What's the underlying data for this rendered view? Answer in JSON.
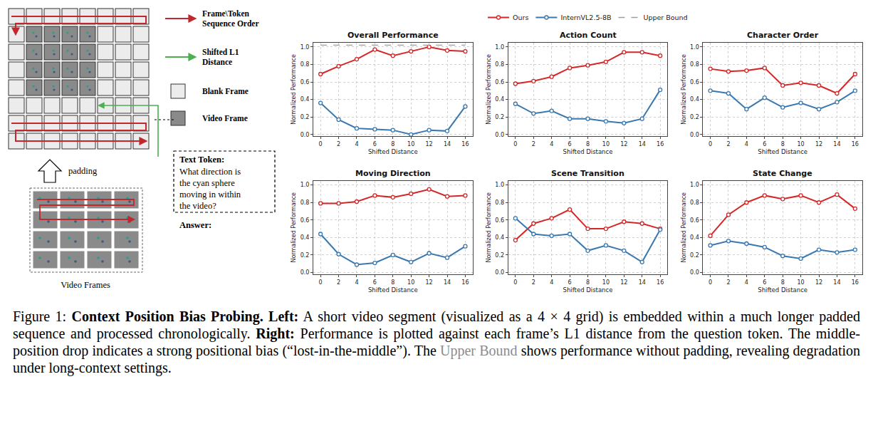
{
  "diagram": {
    "legend_items": [
      {
        "lines": [
          "Frame\\Token",
          "Sequence Order"
        ],
        "color": "#c0282d"
      },
      {
        "lines": [
          "Shifted L1",
          "Distance"
        ],
        "color": "#4caf50"
      },
      {
        "lines": [
          "Blank Frame"
        ],
        "color": "#ececec"
      },
      {
        "lines": [
          "Video Frame"
        ],
        "color": "#8a8a8a"
      }
    ],
    "text_box": {
      "title": "Text Token:",
      "question_lines": [
        "What direction is",
        "the cyan sphere",
        "moving in within",
        "the video?"
      ]
    },
    "answer": "Answer:",
    "padding": "padding",
    "video_frames": "Video Frames"
  },
  "chart_data": [
    {
      "type": "line",
      "title": "Overall Performance",
      "legend": "top",
      "grid": true,
      "x_label": "Shifted Distance",
      "y_label": "Normalized Performance",
      "x": [
        0,
        2,
        4,
        6,
        8,
        10,
        12,
        14,
        16
      ],
      "xlim": [
        -0.8,
        16.8
      ],
      "xticks": [
        0,
        2,
        4,
        6,
        8,
        10,
        12,
        14,
        16
      ],
      "ylim": [
        -0.02,
        1.05
      ],
      "yticks": [
        {
          "value": 0,
          "label": "0.0"
        },
        {
          "value": 0.2,
          "label": "0.2"
        },
        {
          "value": 0.4,
          "label": "0.4"
        },
        {
          "value": 0.6,
          "label": "0.6"
        },
        {
          "value": 0.8,
          "label": "0.8"
        },
        {
          "value": 1,
          "label": "1.0"
        }
      ],
      "series": [
        {
          "name": "Ours",
          "color": "#d62728",
          "marker": "circle",
          "line_style": "solid",
          "values": [
            0.69,
            0.78,
            0.86,
            0.97,
            0.9,
            0.95,
            1.0,
            0.96,
            0.95
          ]
        },
        {
          "name": "InternVL2.5-8B",
          "color": "#3a78b0",
          "marker": "circle",
          "line_style": "solid",
          "values": [
            0.36,
            0.17,
            0.07,
            0.06,
            0.05,
            0.0,
            0.05,
            0.04,
            0.32
          ]
        },
        {
          "name": "Upper Bound",
          "color": "#9e9e9e",
          "marker": "none",
          "line_style": "dashed",
          "values": [
            1.02,
            1.02,
            1.02,
            1.02,
            1.02,
            1.02,
            1.02,
            1.02,
            1.02
          ]
        }
      ]
    },
    {
      "type": "line",
      "title": "Action Count",
      "grid": true,
      "x_label": "Shifted Distance",
      "y_label": "Normalized Performance",
      "x": [
        0,
        2,
        4,
        6,
        8,
        10,
        12,
        14,
        16
      ],
      "xlim": [
        -0.8,
        16.8
      ],
      "xticks": [
        0,
        2,
        4,
        6,
        8,
        10,
        12,
        14,
        16
      ],
      "ylim": [
        -0.02,
        1.05
      ],
      "yticks": [
        {
          "value": 0,
          "label": "0.0"
        },
        {
          "value": 0.2,
          "label": "0.2"
        },
        {
          "value": 0.4,
          "label": "0.4"
        },
        {
          "value": 0.6,
          "label": "0.6"
        },
        {
          "value": 0.8,
          "label": "0.8"
        },
        {
          "value": 1,
          "label": "1.0"
        }
      ],
      "series": [
        {
          "name": "Ours",
          "color": "#d62728",
          "marker": "circle",
          "line_style": "solid",
          "values": [
            0.58,
            0.61,
            0.66,
            0.76,
            0.79,
            0.83,
            0.94,
            0.94,
            0.9
          ]
        },
        {
          "name": "InternVL2.5-8B",
          "color": "#3a78b0",
          "marker": "circle",
          "line_style": "solid",
          "values": [
            0.35,
            0.24,
            0.27,
            0.18,
            0.18,
            0.15,
            0.13,
            0.18,
            0.51
          ]
        }
      ]
    },
    {
      "type": "line",
      "title": "Character Order",
      "grid": true,
      "x_label": "Shifted Distance",
      "y_label": "Normalized Performance",
      "x": [
        0,
        2,
        4,
        6,
        8,
        10,
        12,
        14,
        16
      ],
      "xlim": [
        -0.8,
        16.8
      ],
      "xticks": [
        0,
        2,
        4,
        6,
        8,
        10,
        12,
        14,
        16
      ],
      "ylim": [
        -0.02,
        1.05
      ],
      "yticks": [
        {
          "value": 0,
          "label": "0.0"
        },
        {
          "value": 0.2,
          "label": "0.2"
        },
        {
          "value": 0.4,
          "label": "0.4"
        },
        {
          "value": 0.6,
          "label": "0.6"
        },
        {
          "value": 0.8,
          "label": "0.8"
        },
        {
          "value": 1,
          "label": "1.0"
        }
      ],
      "series": [
        {
          "name": "Ours",
          "color": "#d62728",
          "marker": "circle",
          "line_style": "solid",
          "values": [
            0.75,
            0.72,
            0.73,
            0.76,
            0.56,
            0.59,
            0.56,
            0.47,
            0.69
          ]
        },
        {
          "name": "InternVL2.5-8B",
          "color": "#3a78b0",
          "marker": "circle",
          "line_style": "solid",
          "values": [
            0.5,
            0.47,
            0.29,
            0.42,
            0.31,
            0.36,
            0.29,
            0.37,
            0.5
          ]
        }
      ]
    },
    {
      "type": "line",
      "title": "Moving Direction",
      "grid": true,
      "x_label": "Shifted Distance",
      "y_label": "Normalized Performance",
      "x": [
        0,
        2,
        4,
        6,
        8,
        10,
        12,
        14,
        16
      ],
      "xlim": [
        -0.8,
        16.8
      ],
      "xticks": [
        0,
        2,
        4,
        6,
        8,
        10,
        12,
        14,
        16
      ],
      "ylim": [
        -0.02,
        1.05
      ],
      "yticks": [
        {
          "value": 0,
          "label": "0.0"
        },
        {
          "value": 0.2,
          "label": "0.2"
        },
        {
          "value": 0.4,
          "label": "0.4"
        },
        {
          "value": 0.6,
          "label": "0.6"
        },
        {
          "value": 0.8,
          "label": "0.8"
        },
        {
          "value": 1,
          "label": "1.0"
        }
      ],
      "series": [
        {
          "name": "Ours",
          "color": "#d62728",
          "marker": "circle",
          "line_style": "solid",
          "values": [
            0.79,
            0.79,
            0.81,
            0.88,
            0.86,
            0.9,
            0.95,
            0.87,
            0.88
          ]
        },
        {
          "name": "InternVL2.5-8B",
          "color": "#3a78b0",
          "marker": "circle",
          "line_style": "solid",
          "values": [
            0.44,
            0.21,
            0.09,
            0.11,
            0.2,
            0.12,
            0.22,
            0.17,
            0.3
          ]
        }
      ]
    },
    {
      "type": "line",
      "title": "Scene Transition",
      "grid": true,
      "x_label": "Shifted Distance",
      "y_label": "Normalized Performance",
      "x": [
        0,
        2,
        4,
        6,
        8,
        10,
        12,
        14,
        16
      ],
      "xlim": [
        -0.8,
        16.8
      ],
      "xticks": [
        0,
        2,
        4,
        6,
        8,
        10,
        12,
        14,
        16
      ],
      "ylim": [
        -0.02,
        1.05
      ],
      "yticks": [
        {
          "value": 0,
          "label": "0.0"
        },
        {
          "value": 0.2,
          "label": "0.2"
        },
        {
          "value": 0.4,
          "label": "0.4"
        },
        {
          "value": 0.6,
          "label": "0.6"
        },
        {
          "value": 0.8,
          "label": "0.8"
        },
        {
          "value": 1,
          "label": "1.0"
        }
      ],
      "series": [
        {
          "name": "Ours",
          "color": "#d62728",
          "marker": "circle",
          "line_style": "solid",
          "values": [
            0.37,
            0.56,
            0.62,
            0.72,
            0.5,
            0.5,
            0.58,
            0.56,
            0.5
          ]
        },
        {
          "name": "InternVL2.5-8B",
          "color": "#3a78b0",
          "marker": "circle",
          "line_style": "solid",
          "values": [
            0.62,
            0.44,
            0.42,
            0.44,
            0.25,
            0.31,
            0.25,
            0.12,
            0.49
          ]
        }
      ]
    },
    {
      "type": "line",
      "title": "State Change",
      "grid": true,
      "x_label": "Shifted Distance",
      "y_label": "Normalized Performance",
      "x": [
        0,
        2,
        4,
        6,
        8,
        10,
        12,
        14,
        16
      ],
      "xlim": [
        -0.8,
        16.8
      ],
      "xticks": [
        0,
        2,
        4,
        6,
        8,
        10,
        12,
        14,
        16
      ],
      "ylim": [
        -0.02,
        1.05
      ],
      "yticks": [
        {
          "value": 0,
          "label": "0.0"
        },
        {
          "value": 0.2,
          "label": "0.2"
        },
        {
          "value": 0.4,
          "label": "0.4"
        },
        {
          "value": 0.6,
          "label": "0.6"
        },
        {
          "value": 0.8,
          "label": "0.8"
        },
        {
          "value": 1,
          "label": "1.0"
        }
      ],
      "series": [
        {
          "name": "Ours",
          "color": "#d62728",
          "marker": "circle",
          "line_style": "solid",
          "values": [
            0.42,
            0.66,
            0.8,
            0.88,
            0.84,
            0.88,
            0.8,
            0.89,
            0.73
          ]
        },
        {
          "name": "InternVL2.5-8B",
          "color": "#3a78b0",
          "marker": "circle",
          "line_style": "solid",
          "values": [
            0.31,
            0.36,
            0.33,
            0.29,
            0.19,
            0.16,
            0.26,
            0.23,
            0.26
          ]
        }
      ]
    }
  ],
  "caption": {
    "label": "Figure 1:",
    "title": "Context Position Bias Probing.",
    "left_head": "Left:",
    "left_text": "A short video segment (visualized as a 4 × 4 grid) is embedded within a much longer padded sequence and processed chronologically.",
    "right_head": "Right:",
    "right_text": "Performance is plotted against each frame’s L1 distance from the question token. The middle-position drop indicates a strong positional bias (“lost-in-the-middle”). The",
    "highlight": "Upper Bound",
    "end_text": "shows performance without padding, revealing degradation under long-context settings."
  }
}
